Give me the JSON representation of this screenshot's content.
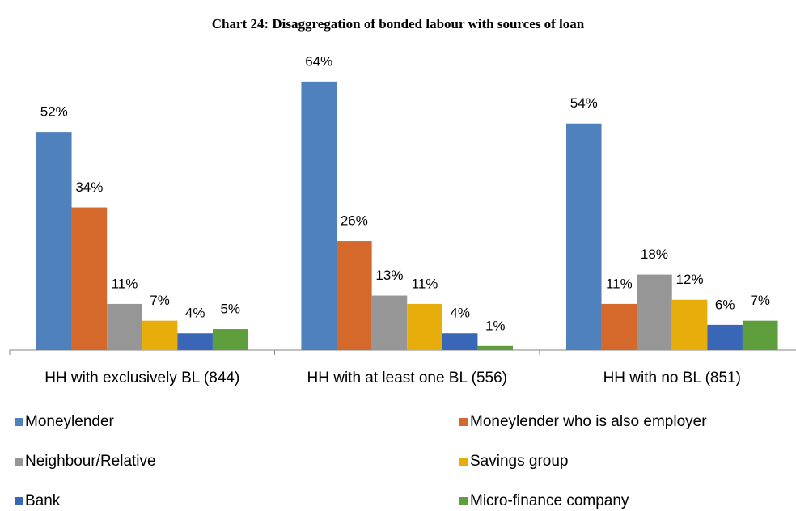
{
  "chart_data": {
    "type": "bar",
    "title": "Chart 24: Disaggregation of bonded labour with sources of loan",
    "categories": [
      "HH with exclusively BL (844)",
      "HH with at least one BL (556)",
      "HH with no BL (851)"
    ],
    "series": [
      {
        "name": "Moneylender",
        "color": "#4f81bd",
        "values": [
          52,
          64,
          54
        ],
        "value_labels": [
          "52%",
          "64%",
          "54%"
        ]
      },
      {
        "name": "Moneylender who is also employer",
        "color": "#d5692b",
        "values": [
          34,
          26,
          11
        ],
        "value_labels": [
          "34%",
          "26%",
          "11%"
        ]
      },
      {
        "name": "Neighbour/Relative",
        "color": "#969696",
        "values": [
          11,
          13,
          18
        ],
        "value_labels": [
          "11%",
          "13%",
          "18%"
        ]
      },
      {
        "name": "Savings group",
        "color": "#e6ad0b",
        "values": [
          7,
          11,
          12
        ],
        "value_labels": [
          "7%",
          "11%",
          "12%"
        ]
      },
      {
        "name": "Bank",
        "color": "#3a66b8",
        "values": [
          4,
          4,
          6
        ],
        "value_labels": [
          "4%",
          "4%",
          "6%"
        ]
      },
      {
        "name": "Micro-finance company",
        "color": "#5f9e3d",
        "values": [
          5,
          1,
          7
        ],
        "value_labels": [
          "5%",
          "1%",
          "7%"
        ]
      }
    ]
  }
}
